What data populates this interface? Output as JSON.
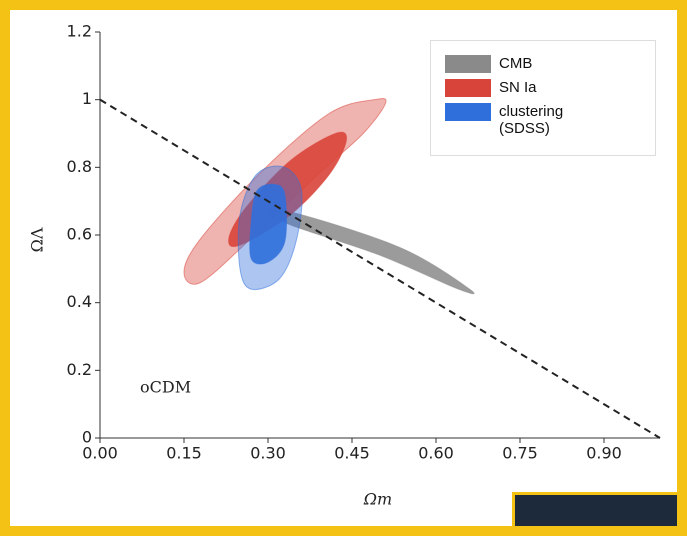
{
  "chart_data": {
    "type": "contour",
    "xlabel": "Ωm",
    "ylabel": "ΩΛ",
    "annotation": "oCDM",
    "xlim": [
      0,
      1.0
    ],
    "ylim": [
      0,
      1.2
    ],
    "xticks": [
      {
        "value": 0,
        "label": "0.00"
      },
      {
        "value": 0.15,
        "label": "0.15"
      },
      {
        "value": 0.3,
        "label": "0.30"
      },
      {
        "value": 0.45,
        "label": "0.45"
      },
      {
        "value": 0.6,
        "label": "0.60"
      },
      {
        "value": 0.75,
        "label": "0.75"
      },
      {
        "value": 0.9,
        "label": "0.90"
      }
    ],
    "yticks": [
      0,
      0.2,
      0.4,
      0.6,
      0.8,
      1,
      1.2
    ],
    "legend": "upper right",
    "series": [
      {
        "name": "CMB",
        "color": "#8a8a8a",
        "levels": [
          {
            "x": [
              0.3,
              0.36,
              0.54,
              0.66,
              0.64,
              0.5,
              0.34
            ],
            "y": [
              0.67,
              0.66,
              0.56,
              0.44,
              0.44,
              0.54,
              0.63
            ]
          }
        ]
      },
      {
        "name": "SN Ia",
        "color": "#d9443a",
        "levels": [
          {
            "x": [
              0.51,
              0.47,
              0.39,
              0.27,
              0.18,
              0.15,
              0.18,
              0.29,
              0.41,
              0.49
            ],
            "y": [
              0.99,
              0.9,
              0.78,
              0.59,
              0.46,
              0.49,
              0.59,
              0.79,
              0.96,
              1.0
            ]
          },
          {
            "x": [
              0.44,
              0.41,
              0.34,
              0.25,
              0.23,
              0.26,
              0.34,
              0.42
            ],
            "y": [
              0.88,
              0.78,
              0.66,
              0.57,
              0.59,
              0.68,
              0.82,
              0.9
            ]
          }
        ]
      },
      {
        "name": "clustering (SDSS)",
        "color": "#2f6fdb",
        "levels": [
          {
            "x": [
              0.36,
              0.35,
              0.32,
              0.27,
              0.25,
              0.25,
              0.28,
              0.33
            ],
            "y": [
              0.73,
              0.58,
              0.47,
              0.44,
              0.5,
              0.66,
              0.78,
              0.8
            ]
          },
          {
            "x": [
              0.33,
              0.33,
              0.3,
              0.27,
              0.27,
              0.28,
              0.31
            ],
            "y": [
              0.72,
              0.58,
              0.52,
              0.53,
              0.64,
              0.73,
              0.75
            ]
          }
        ]
      }
    ],
    "reference_line": {
      "x": [
        0,
        1.0
      ],
      "y": [
        1,
        0
      ]
    }
  }
}
